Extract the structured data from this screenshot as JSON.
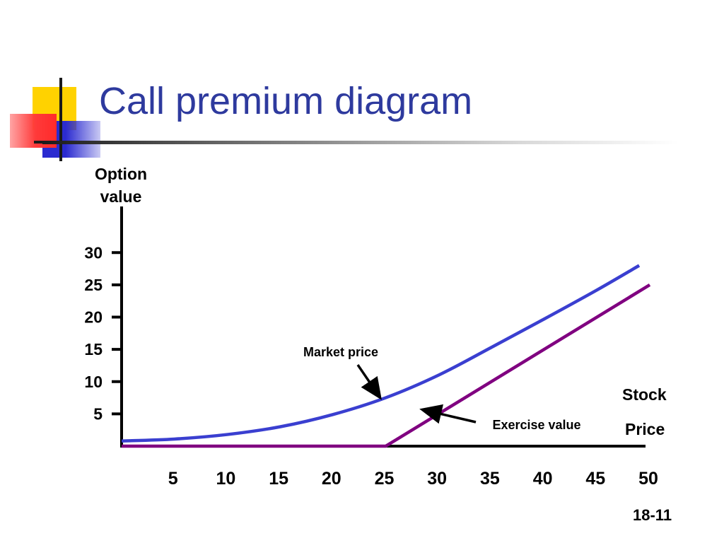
{
  "slide": {
    "title": "Call premium diagram",
    "slide_number": "18-11"
  },
  "colors": {
    "title": "#2e3a9e",
    "market_price_line": "#3a3fd0",
    "exercise_value_line": "#800080",
    "axis": "#000000",
    "deco_yellow": "#ffd200",
    "deco_blue": "#2b2bd0",
    "deco_red": "#ff3a3a"
  },
  "chart_data": {
    "type": "line",
    "ylabel_lines": [
      "Option",
      "value"
    ],
    "xlabel_lines": [
      "Stock",
      "Price"
    ],
    "x_ticks": [
      5,
      10,
      15,
      20,
      25,
      30,
      35,
      40,
      45,
      50
    ],
    "y_ticks": [
      5,
      10,
      15,
      20,
      25,
      30
    ],
    "xlim": [
      0,
      50
    ],
    "ylim": [
      0,
      32
    ],
    "grid": false,
    "series": [
      {
        "name": "Exercise value",
        "color": "#800080",
        "x": [
          0,
          25,
          50
        ],
        "y": [
          0,
          0,
          25
        ]
      },
      {
        "name": "Market price",
        "color": "#3a3fd0",
        "x": [
          0,
          5,
          10,
          15,
          20,
          25,
          30,
          35,
          40,
          45,
          49
        ],
        "y": [
          0.8,
          1.1,
          1.8,
          3.0,
          4.9,
          7.5,
          11.0,
          15.3,
          19.7,
          24.2,
          28.0
        ]
      }
    ],
    "annotations": [
      {
        "label": "Market price",
        "points_to_x": 25,
        "points_to_series": "Market price"
      },
      {
        "label": "Exercise value",
        "points_to_x": 30,
        "points_to_series": "Exercise value"
      }
    ]
  }
}
